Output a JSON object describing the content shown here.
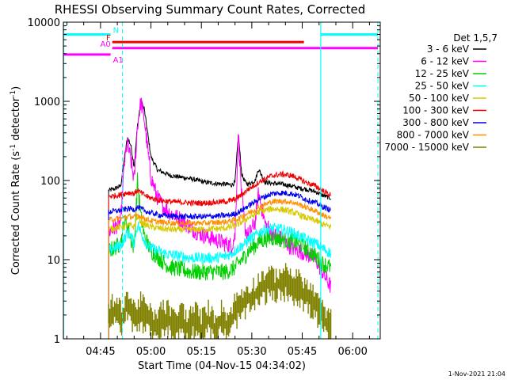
{
  "chart_data": {
    "type": "line",
    "title": "RHESSI Observing Summary Count Rates, Corrected",
    "xlabel": "Start Time (04-Nov-15 04:34:02)",
    "ylabel_main": "Corrected Count Rate (s",
    "ylabel_sup1": "-1",
    "ylabel_mid": " detector",
    "ylabel_sup2": "-1",
    "ylabel_end": ")",
    "ylim": [
      1,
      10000
    ],
    "yscale": "log",
    "xlim_minutes": [
      -0.05,
      94.2
    ],
    "x_ticks": [
      {
        "m": 11,
        "label": "04:45"
      },
      {
        "m": 26,
        "label": "05:00"
      },
      {
        "m": 41,
        "label": "05:15"
      },
      {
        "m": 56,
        "label": "05:30"
      },
      {
        "m": 71,
        "label": "05:45"
      },
      {
        "m": 86,
        "label": "06:00"
      }
    ],
    "y_ticks": [
      {
        "v": 1,
        "label": "1"
      },
      {
        "v": 10,
        "label": "10"
      },
      {
        "v": 100,
        "label": "100"
      },
      {
        "v": 1000,
        "label": "1000"
      },
      {
        "v": 10000,
        "label": "10000"
      }
    ],
    "legend": {
      "placement": "right",
      "header": "Det 1,5,7",
      "entries": [
        {
          "label": "3 - 6 keV",
          "color": "#000000"
        },
        {
          "label": "6 - 12 keV",
          "color": "#ff00ff"
        },
        {
          "label": "12 - 25 keV",
          "color": "#00d000"
        },
        {
          "label": "25 - 50 keV",
          "color": "#00ffff"
        },
        {
          "label": "50 - 100 keV",
          "color": "#d8c800"
        },
        {
          "label": "100 - 300 keV",
          "color": "#ee0000"
        },
        {
          "label": "300 - 800 keV",
          "color": "#0000ee"
        },
        {
          "label": "800 - 7000 keV",
          "color": "#ff9000"
        },
        {
          "label": "7000 - 15000 keV",
          "color": "#808000"
        }
      ]
    },
    "flags": [
      {
        "label": "N",
        "color": "#00ffff",
        "bars": [
          [
            -0.05,
            14
          ],
          [
            76.5,
            93.5
          ]
        ],
        "y": 7000
      },
      {
        "label": "F",
        "color": "#ee0000",
        "bars": [
          [
            14.5,
            71.5
          ]
        ],
        "y": 5600
      },
      {
        "label": "A0",
        "color": "#ff00ff",
        "bars": [
          [
            14.5,
            93.5
          ]
        ],
        "y": 4700
      },
      {
        "label": "A1",
        "color": "#ff00ff",
        "bars": [
          [
            -0.05,
            14
          ]
        ],
        "y": 3900
      }
    ],
    "markers": {
      "solid": [
        0,
        76.5
      ],
      "dashed": [
        17.5,
        93.5
      ],
      "color": "#00ffff"
    },
    "data_start_m": 13.4,
    "data_end_m": 79.5,
    "series": [
      {
        "name": "3 - 6 keV",
        "color": "#000000",
        "x": [
          13.4,
          15,
          17,
          18,
          19,
          20,
          21,
          22,
          23,
          24,
          25,
          26,
          28,
          30,
          32,
          35,
          38,
          40,
          42,
          45,
          48,
          50,
          51,
          52,
          53,
          54,
          55,
          57,
          58,
          60,
          62,
          65,
          68,
          70,
          72,
          75,
          77,
          79.5
        ],
        "y": [
          75,
          78,
          85,
          180,
          350,
          280,
          150,
          500,
          1000,
          800,
          400,
          200,
          135,
          125,
          115,
          110,
          105,
          100,
          95,
          92,
          90,
          88,
          95,
          380,
          120,
          95,
          90,
          100,
          140,
          95,
          92,
          90,
          85,
          80,
          78,
          72,
          65,
          60
        ]
      },
      {
        "name": "6 - 12 keV",
        "color": "#ff00ff",
        "x": [
          13.4,
          15,
          17,
          18,
          19,
          20,
          21,
          22,
          23,
          24,
          25,
          26,
          28,
          30,
          32,
          35,
          38,
          40,
          42,
          45,
          48,
          50,
          51,
          52,
          53,
          54,
          55,
          57,
          58,
          60,
          62,
          65,
          68,
          70,
          72,
          75,
          77,
          79.5
        ],
        "y": [
          22,
          25,
          30,
          150,
          300,
          180,
          100,
          500,
          1000,
          600,
          250,
          110,
          60,
          45,
          38,
          32,
          25,
          22,
          20,
          18,
          16,
          15,
          20,
          400,
          60,
          25,
          20,
          30,
          70,
          28,
          22,
          18,
          14,
          13,
          12,
          10,
          7,
          4.5
        ]
      },
      {
        "name": "12 - 25 keV",
        "color": "#00d000",
        "x": [
          13.4,
          15,
          17,
          18,
          19,
          20,
          21,
          22,
          23,
          24,
          25,
          26,
          28,
          30,
          32,
          35,
          38,
          40,
          42,
          45,
          48,
          50,
          51,
          52,
          53,
          54,
          55,
          57,
          58,
          60,
          62,
          65,
          68,
          70,
          72,
          75,
          77,
          79.5
        ],
        "y": [
          13,
          14,
          16,
          30,
          28,
          18,
          14,
          100,
          35,
          20,
          16,
          13,
          11,
          9,
          8,
          7.5,
          7,
          7,
          7,
          7,
          7,
          7.5,
          8,
          9,
          10,
          11,
          13,
          15,
          17,
          18,
          19,
          18,
          17,
          16,
          14,
          11,
          9,
          8
        ]
      },
      {
        "name": "25 - 50 keV",
        "color": "#00ffff",
        "x": [
          13.4,
          15,
          17,
          18,
          19,
          20,
          21,
          22,
          23,
          24,
          25,
          26,
          28,
          30,
          32,
          35,
          38,
          40,
          42,
          45,
          48,
          50,
          51,
          52,
          53,
          54,
          55,
          57,
          58,
          60,
          62,
          65,
          68,
          70,
          72,
          75,
          77,
          79.5
        ],
        "y": [
          13,
          14,
          15,
          18,
          22,
          20,
          16,
          28,
          22,
          18,
          15,
          14,
          13,
          12,
          11.5,
          11,
          10.5,
          10.5,
          10.5,
          10.5,
          11,
          12,
          13,
          14,
          15,
          16,
          18,
          20,
          22,
          24,
          25,
          24,
          22,
          20,
          18,
          16,
          14,
          12
        ]
      },
      {
        "name": "50 - 100 keV",
        "color": "#d8c800",
        "x": [
          13.4,
          15,
          17,
          18,
          19,
          20,
          21,
          22,
          23,
          24,
          25,
          26,
          28,
          30,
          32,
          35,
          38,
          40,
          42,
          45,
          48,
          50,
          51,
          52,
          53,
          54,
          55,
          57,
          58,
          60,
          62,
          65,
          68,
          70,
          72,
          75,
          77,
          79.5
        ],
        "y": [
          24,
          25,
          26,
          26,
          27,
          27,
          26,
          35,
          30,
          28,
          27,
          26,
          25,
          24.5,
          24,
          24,
          24,
          24,
          24,
          24.5,
          25,
          26,
          27,
          28,
          30,
          32,
          34,
          37,
          40,
          42,
          44,
          43,
          40,
          37,
          34,
          31,
          28,
          26
        ]
      },
      {
        "name": "100 - 300 keV",
        "color": "#ee0000",
        "x": [
          13.4,
          15,
          17,
          18,
          19,
          20,
          21,
          22,
          23,
          24,
          25,
          26,
          28,
          30,
          32,
          35,
          38,
          40,
          42,
          45,
          48,
          50,
          51,
          52,
          53,
          54,
          55,
          57,
          58,
          60,
          62,
          65,
          68,
          70,
          72,
          75,
          77,
          79.5
        ],
        "y": [
          63,
          64,
          66,
          68,
          70,
          70,
          68,
          75,
          70,
          66,
          62,
          60,
          57,
          55,
          54,
          53,
          52,
          52,
          52,
          53,
          54,
          56,
          58,
          62,
          66,
          72,
          78,
          88,
          95,
          105,
          115,
          120,
          115,
          105,
          95,
          85,
          75,
          65
        ]
      },
      {
        "name": "300 - 800 keV",
        "color": "#0000ee",
        "x": [
          13.4,
          15,
          17,
          18,
          19,
          20,
          21,
          22,
          23,
          24,
          25,
          26,
          28,
          30,
          32,
          35,
          38,
          40,
          42,
          45,
          48,
          50,
          51,
          52,
          53,
          54,
          55,
          57,
          58,
          60,
          62,
          65,
          68,
          70,
          72,
          75,
          77,
          79.5
        ],
        "y": [
          40,
          41,
          42,
          43,
          44,
          44,
          43,
          46,
          44,
          42,
          40,
          39,
          37,
          36,
          35.5,
          35,
          35,
          35,
          35,
          35.5,
          36,
          37,
          38,
          40,
          42,
          45,
          48,
          54,
          58,
          63,
          68,
          70,
          68,
          64,
          58,
          52,
          47,
          42
        ]
      },
      {
        "name": "800 - 7000 keV",
        "color": "#ff9000",
        "x": [
          13.4,
          15,
          17,
          18,
          19,
          20,
          21,
          22,
          23,
          24,
          25,
          26,
          28,
          30,
          32,
          35,
          38,
          40,
          42,
          45,
          48,
          50,
          51,
          52,
          53,
          54,
          55,
          57,
          58,
          60,
          62,
          65,
          68,
          70,
          72,
          75,
          77,
          79.5
        ],
        "y": [
          32,
          32.5,
          33,
          34,
          35,
          35,
          34,
          37,
          35,
          33.5,
          32,
          31,
          30,
          29.5,
          29,
          29,
          29,
          29,
          29,
          29.5,
          30,
          31,
          32,
          33,
          35,
          37,
          39,
          43,
          46,
          50,
          54,
          55,
          53,
          50,
          46,
          41,
          37,
          33
        ]
      },
      {
        "name": "7000 - 15000 keV",
        "color": "#808000",
        "stepped": true,
        "x": [
          13.4,
          15,
          17,
          19,
          21,
          23,
          25,
          27,
          29,
          31,
          33,
          35,
          37,
          39,
          41,
          43,
          45,
          47,
          49,
          51,
          53,
          55,
          57,
          59,
          61,
          63,
          65,
          67,
          69,
          71,
          73,
          75,
          77,
          79.5
        ],
        "y": [
          2,
          2.5,
          2,
          3,
          2,
          2.5,
          2,
          1.5,
          2,
          2,
          1.5,
          2,
          1.5,
          2,
          1.5,
          2,
          1.5,
          2,
          1.5,
          2.5,
          3,
          3.5,
          4,
          5,
          5.5,
          5,
          6,
          5.5,
          5,
          4.5,
          3.5,
          3,
          2,
          1.5
        ]
      }
    ]
  },
  "footer": {
    "timestamp": "1-Nov-2021 21:04"
  }
}
